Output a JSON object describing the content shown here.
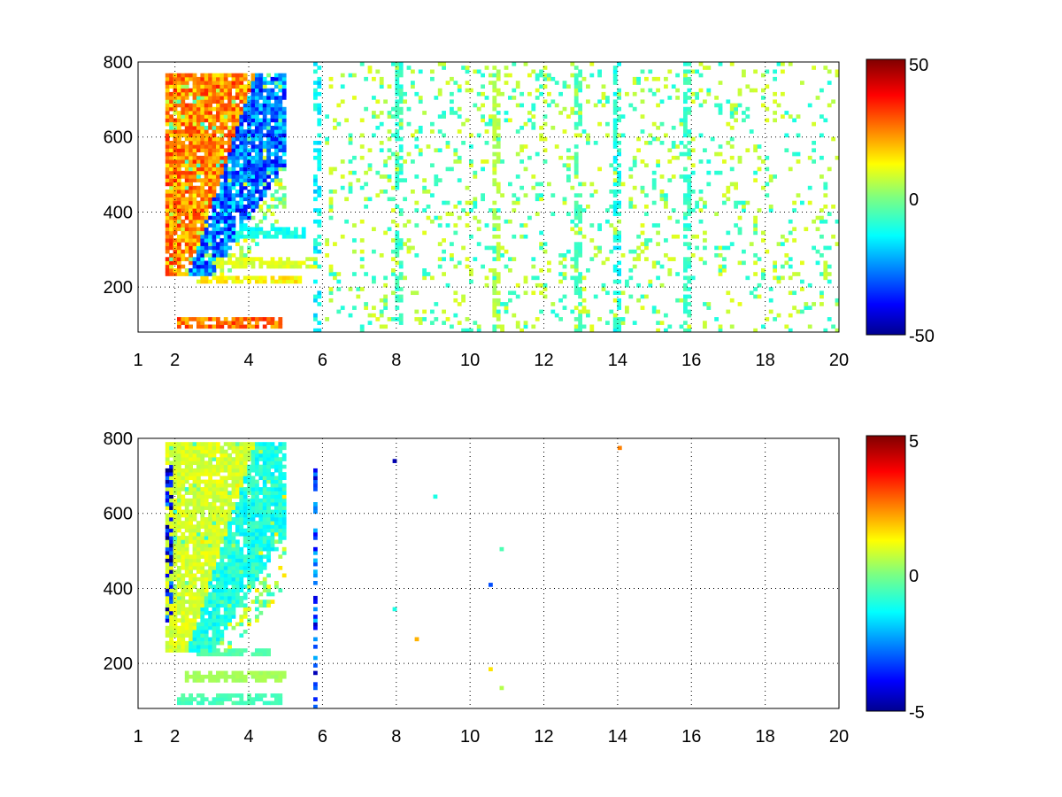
{
  "chart_data": [
    {
      "type": "heatmap",
      "title": "",
      "xlabel": "",
      "ylabel": "",
      "xlim": [
        1,
        20
      ],
      "ylim": [
        80,
        800
      ],
      "xticks": [
        "1",
        "2",
        "4",
        "6",
        "8",
        "10",
        "12",
        "14",
        "16",
        "18",
        "20"
      ],
      "yticks": [
        "200",
        "400",
        "600",
        "800"
      ],
      "grid": true,
      "colorbar": {
        "min": -50,
        "max": 50,
        "ticks": [
          "50",
          "0",
          "-50"
        ]
      },
      "features": [
        {
          "kind": "band",
          "x": [
            1.7,
            5.0
          ],
          "y": [
            230,
            760
          ],
          "curve": 0.55,
          "positive_value": 35,
          "negative_value": -40
        },
        {
          "kind": "hline",
          "y": 100,
          "x": [
            2.0,
            4.8
          ],
          "value": 30
        },
        {
          "kind": "hline",
          "y": 215,
          "x": [
            2.5,
            5.4
          ],
          "value": 15
        },
        {
          "kind": "hline",
          "y": 260,
          "x": [
            3.0,
            5.8
          ],
          "value": 10
        },
        {
          "kind": "hline",
          "y": 340,
          "x": [
            3.5,
            5.5
          ],
          "value": -12
        },
        {
          "kind": "vline",
          "x": 5.8,
          "y": [
            80,
            800
          ],
          "value": -15
        },
        {
          "kind": "vline",
          "x": 8.0,
          "y": [
            80,
            800
          ],
          "value": -8
        },
        {
          "kind": "vline",
          "x": 10.7,
          "y": [
            80,
            800
          ],
          "value": 6
        },
        {
          "kind": "vline",
          "x": 12.9,
          "y": [
            80,
            800
          ],
          "value": -6
        },
        {
          "kind": "vline",
          "x": 13.9,
          "y": [
            80,
            800
          ],
          "value": -12
        },
        {
          "kind": "vline",
          "x": 15.8,
          "y": [
            80,
            800
          ],
          "value": -8
        },
        {
          "kind": "noise",
          "x": [
            6,
            20
          ],
          "density": 0.14,
          "amplitude": 10
        }
      ]
    },
    {
      "type": "heatmap",
      "title": "",
      "xlabel": "",
      "ylabel": "",
      "xlim": [
        1,
        20
      ],
      "ylim": [
        80,
        800
      ],
      "xticks": [
        "1",
        "2",
        "4",
        "6",
        "8",
        "10",
        "12",
        "14",
        "16",
        "18",
        "20"
      ],
      "yticks": [
        "200",
        "400",
        "600",
        "800"
      ],
      "grid": true,
      "colorbar": {
        "min": -5,
        "max": 5,
        "ticks": [
          "5",
          "0",
          "-5"
        ]
      },
      "features": [
        {
          "kind": "band",
          "x": [
            1.7,
            5.0
          ],
          "y": [
            230,
            780
          ],
          "curve": 0.55,
          "positive_value": 1.2,
          "negative_value": -1.5
        },
        {
          "kind": "hline",
          "y": 100,
          "x": [
            2.0,
            4.9
          ],
          "value": -0.6
        },
        {
          "kind": "hline",
          "y": 160,
          "x": [
            2.2,
            5.0
          ],
          "value": 0.4
        },
        {
          "kind": "hline",
          "y": 225,
          "x": [
            2.5,
            4.5
          ],
          "value": -0.5
        },
        {
          "kind": "vline",
          "x": 5.75,
          "y": [
            80,
            760
          ],
          "value": -3.5
        },
        {
          "kind": "vline",
          "x": 1.8,
          "y": [
            300,
            720
          ],
          "value": -4.5
        },
        {
          "kind": "points",
          "values": [
            [
              14.0,
              770,
              2.5
            ],
            [
              7.9,
              735,
              -4.5
            ],
            [
              8.5,
              260,
              2.0
            ],
            [
              10.8,
              500,
              -0.5
            ],
            [
              10.5,
              405,
              -3.0
            ],
            [
              7.9,
              340,
              -1.0
            ],
            [
              10.8,
              130,
              0.5
            ],
            [
              10.5,
              180,
              1.5
            ],
            [
              9.0,
              640,
              -1.0
            ]
          ]
        }
      ]
    }
  ]
}
